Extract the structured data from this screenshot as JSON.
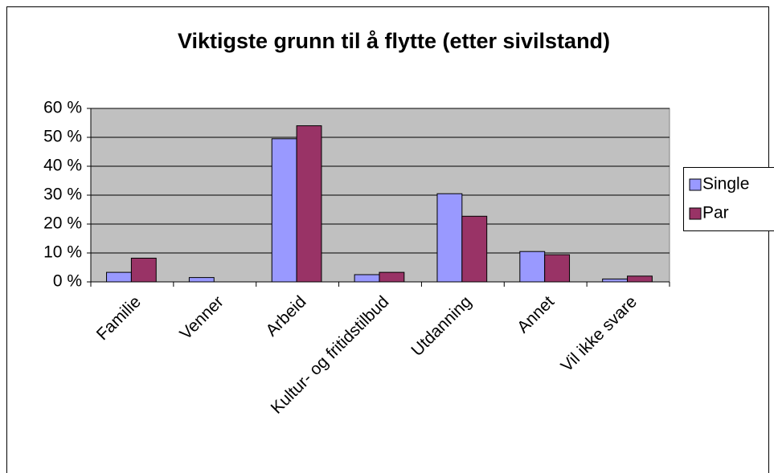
{
  "chart_data": {
    "type": "bar",
    "title": "Viktigste grunn til å flytte (etter sivilstand)",
    "categories": [
      "Familie",
      "Venner",
      "Arbeid",
      "Kultur- og fritidstilbud",
      "Utdanning",
      "Annet",
      "Vil ikke svare"
    ],
    "series": [
      {
        "name": "Single",
        "color": "#9999ff",
        "values": [
          3.3,
          1.5,
          49.5,
          2.5,
          30.5,
          10.5,
          1
        ]
      },
      {
        "name": "Par",
        "color": "#993366",
        "values": [
          8.2,
          0,
          54,
          3.3,
          22.7,
          9.4,
          2
        ]
      }
    ],
    "ylim": [
      0,
      60
    ],
    "yticks": [
      {
        "value": 0,
        "label": "0 %"
      },
      {
        "value": 10,
        "label": "10 %"
      },
      {
        "value": 20,
        "label": "20 %"
      },
      {
        "value": 30,
        "label": "30 %"
      },
      {
        "value": 40,
        "label": "40 %"
      },
      {
        "value": 50,
        "label": "50 %"
      },
      {
        "value": 60,
        "label": "60 %"
      }
    ],
    "grid": true,
    "legend": "right"
  }
}
